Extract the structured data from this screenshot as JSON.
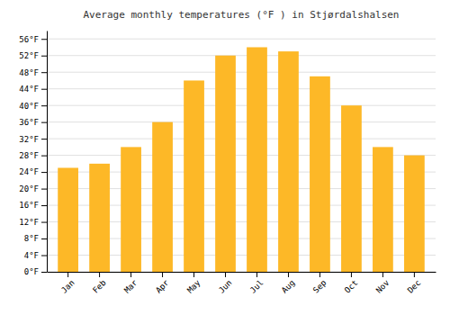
{
  "chart_data": {
    "type": "bar",
    "title": "Average monthly temperatures (°F ) in Stjørdalshalsen",
    "categories": [
      "Jan",
      "Feb",
      "Mar",
      "Apr",
      "May",
      "Jun",
      "Jul",
      "Aug",
      "Sep",
      "Oct",
      "Nov",
      "Dec"
    ],
    "values": [
      25,
      26,
      30,
      36,
      46,
      52,
      54,
      53,
      47,
      40,
      30,
      28
    ],
    "color": "#FDB827",
    "ylim": [
      0,
      58
    ],
    "yticks": [
      {
        "value": 0,
        "label": "0°F"
      },
      {
        "value": 4,
        "label": "4°F"
      },
      {
        "value": 8,
        "label": "8°F"
      },
      {
        "value": 12,
        "label": "12°F"
      },
      {
        "value": 16,
        "label": "16°F"
      },
      {
        "value": 20,
        "label": "20°F"
      },
      {
        "value": 24,
        "label": "24°F"
      },
      {
        "value": 28,
        "label": "28°F"
      },
      {
        "value": 32,
        "label": "32°F"
      },
      {
        "value": 36,
        "label": "36°F"
      },
      {
        "value": 40,
        "label": "40°F"
      },
      {
        "value": 44,
        "label": "44°F"
      },
      {
        "value": 48,
        "label": "48°F"
      },
      {
        "value": 52,
        "label": "52°F"
      },
      {
        "value": 56,
        "label": "56°F"
      }
    ],
    "grid": true
  }
}
